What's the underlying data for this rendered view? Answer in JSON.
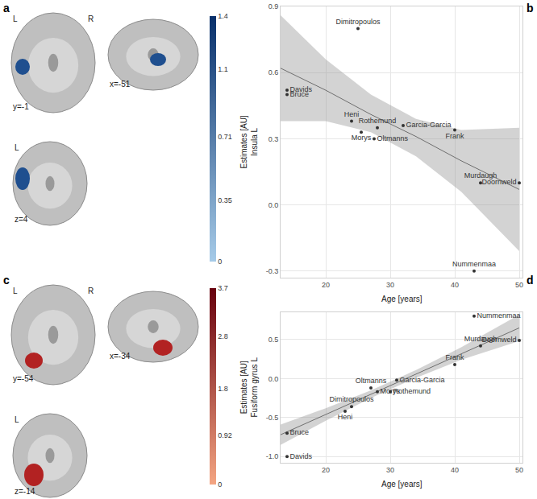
{
  "chart_data": [
    {
      "type": "brain_slices",
      "panel": "a",
      "color": "#1f4f8f",
      "views": [
        {
          "side_labels": [
            "L",
            "R"
          ],
          "coordinate": "y=-1"
        },
        {
          "side_labels": [],
          "coordinate": "x=-51"
        },
        {
          "side_labels": [
            "L"
          ],
          "coordinate": "z=4"
        }
      ],
      "colorbar": {
        "colors": [
          "#a6cbe8",
          "#08306b"
        ],
        "range": [
          0,
          1.4
        ],
        "ticks": [
          0,
          0.35,
          0.71,
          1.1,
          1.4
        ]
      }
    },
    {
      "type": "scatter",
      "panel": "b",
      "x_label": "Age [years]",
      "y_label": [
        "Estimates [AU]",
        "Insula L"
      ],
      "color": "#333333",
      "grid": true,
      "xlim": [
        13,
        50.5
      ],
      "xticks": [
        20,
        30,
        40,
        50
      ],
      "ylim": [
        -0.33,
        0.9
      ],
      "yticks": [
        -0.3,
        {
          "value": 0,
          "label": "0.0"
        },
        0.3,
        0.6,
        0.9
      ],
      "points": {
        "labels": [
          "Davids",
          "Bruce",
          "Dimitropoulos",
          "Heni",
          "Morys",
          "Rothemund",
          "Oltmanns",
          "Garcia-Garcia",
          "Frank",
          "Murdaugh",
          "Doornweld",
          "Nummenmaa"
        ],
        "x": [
          14,
          14,
          25,
          24,
          25.5,
          28,
          27.5,
          32,
          40,
          44,
          50,
          43
        ],
        "y": [
          0.52,
          0.5,
          0.8,
          0.38,
          0.33,
          0.35,
          0.3,
          0.36,
          0.34,
          0.1,
          0.1,
          -0.3
        ]
      },
      "fit": {
        "x": [
          13,
          20,
          27,
          34,
          41,
          50
        ],
        "y": [
          0.62,
          0.52,
          0.41,
          0.31,
          0.2,
          0.07
        ],
        "lower": [
          0.38,
          0.38,
          0.33,
          0.22,
          0.06,
          -0.21
        ],
        "upper": [
          0.86,
          0.66,
          0.5,
          0.39,
          0.34,
          0.35
        ]
      }
    },
    {
      "type": "brain_slices",
      "panel": "c",
      "color": "#b22222",
      "views": [
        {
          "side_labels": [
            "L",
            "R"
          ],
          "coordinate": "y=-54"
        },
        {
          "side_labels": [],
          "coordinate": "x=-34"
        },
        {
          "side_labels": [
            "L"
          ],
          "coordinate": "z=-14"
        }
      ],
      "colorbar": {
        "colors": [
          "#f4a582",
          "#67000d"
        ],
        "range": [
          0,
          3.7
        ],
        "ticks": [
          0,
          0.92,
          1.8,
          2.8,
          3.7
        ]
      }
    },
    {
      "type": "scatter",
      "panel": "d",
      "x_label": "Age [years]",
      "y_label": [
        "Estimates [AU]",
        "Fusiform gyrus L"
      ],
      "color": "#333333",
      "grid": true,
      "xlim": [
        13,
        50.5
      ],
      "xticks": [
        20,
        30,
        40,
        50
      ],
      "ylim": [
        -1.08,
        0.85
      ],
      "yticks": [
        {
          "value": -1,
          "label": "-1.0"
        },
        -0.5,
        {
          "value": 0,
          "label": "0.0"
        },
        0.5
      ],
      "points": {
        "labels": [
          "Davids",
          "Bruce",
          "Dimitropoulos",
          "Heni",
          "Oltmanns",
          "Morys",
          "Garcia-Garcia",
          "Rothemund",
          "Frank",
          "Murdaugh",
          "Nummenmaa",
          "Doornweld"
        ],
        "x": [
          14,
          14,
          24,
          23,
          27,
          28,
          31,
          30,
          40,
          44,
          43,
          50
        ],
        "y": [
          -1.0,
          -0.7,
          -0.36,
          -0.42,
          -0.12,
          -0.17,
          -0.02,
          -0.17,
          0.18,
          0.42,
          0.8,
          0.49
        ]
      },
      "fit": {
        "x": [
          13,
          20,
          27,
          34,
          41,
          50
        ],
        "y": [
          -0.72,
          -0.46,
          -0.2,
          0.06,
          0.32,
          0.65
        ],
        "lower": [
          -0.85,
          -0.54,
          -0.25,
          0.01,
          0.24,
          0.48
        ],
        "upper": [
          -0.59,
          -0.38,
          -0.15,
          0.11,
          0.4,
          0.82
        ]
      }
    }
  ]
}
